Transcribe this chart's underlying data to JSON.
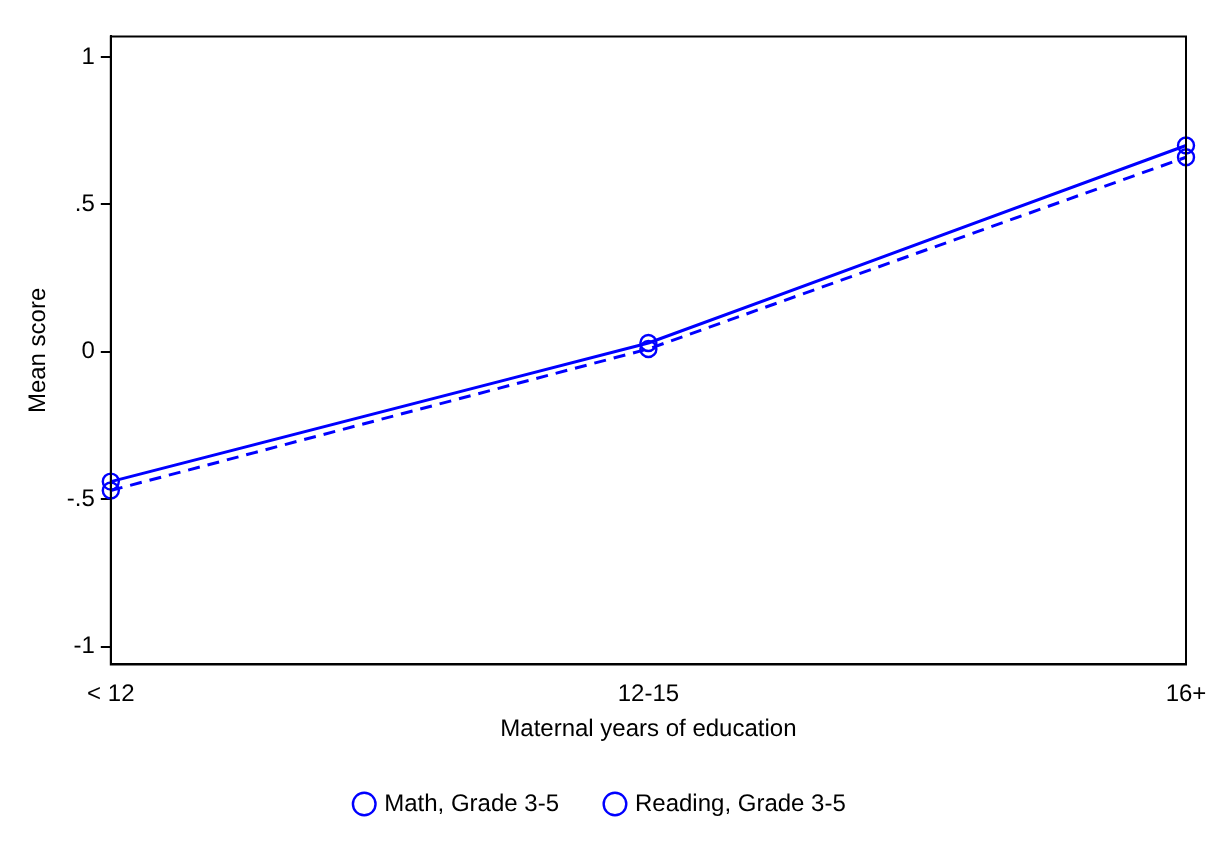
{
  "chart_data": {
    "type": "line",
    "xlabel": "Maternal years of education",
    "ylabel": "Mean score",
    "categories": [
      "< 12",
      "12-15",
      "16+"
    ],
    "series": [
      {
        "name": "Math, Grade 3-5",
        "color": "#0000ff",
        "values": [
          -0.44,
          0.03,
          0.7
        ],
        "line_style": "solid"
      },
      {
        "name": "Reading, Grade 3-5",
        "color": "#0000ff",
        "values": [
          -0.47,
          0.01,
          0.66
        ],
        "line_style": "dashed"
      }
    ],
    "ylim": [
      -1.06,
      1.07
    ],
    "yticks": [
      {
        "value": -1,
        "label": "-1"
      },
      {
        "value": -0.5,
        "label": "-.5"
      },
      0,
      {
        "value": 0.5,
        "label": ".5"
      },
      1
    ],
    "grid": false,
    "legend": "bottom",
    "marker": "circle"
  }
}
